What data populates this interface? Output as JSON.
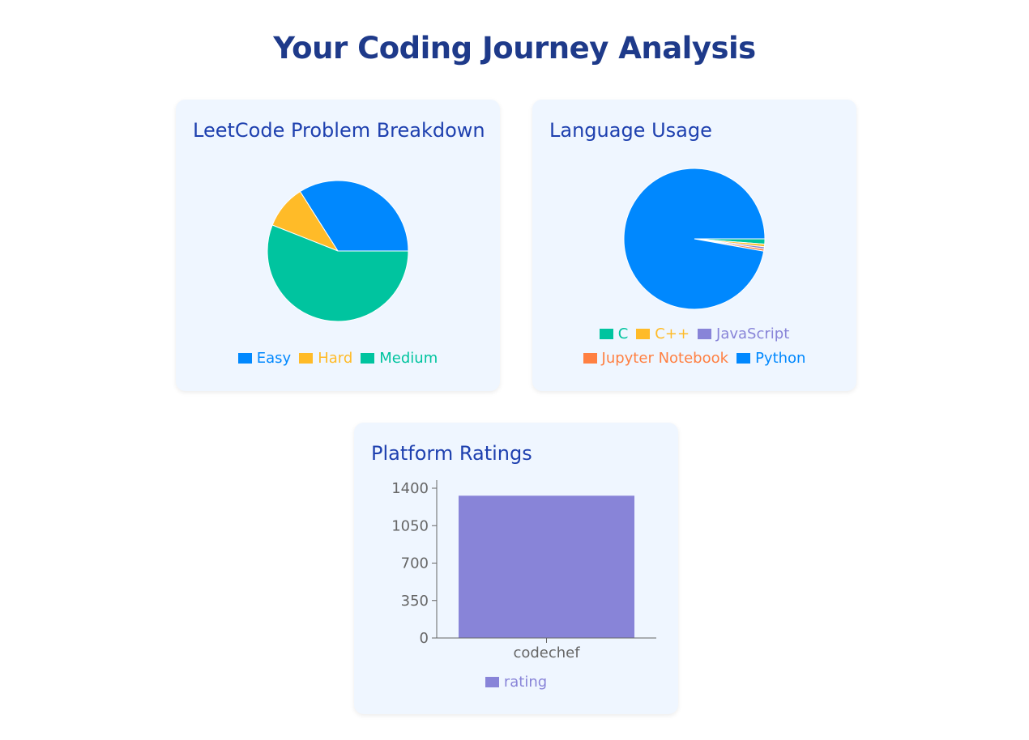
{
  "page": {
    "title": "Your Coding Journey Analysis"
  },
  "leetcode_card": {
    "title": "LeetCode Problem Breakdown"
  },
  "language_card": {
    "title": "Language Usage"
  },
  "ratings_card": {
    "title": "Platform Ratings"
  },
  "chart_data": [
    {
      "type": "pie",
      "title": "LeetCode Problem Breakdown",
      "slices": [
        {
          "label": "Easy",
          "value": 34,
          "color": "#0088fe"
        },
        {
          "label": "Hard",
          "value": 10,
          "color": "#ffbb28"
        },
        {
          "label": "Medium",
          "value": 56,
          "color": "#00c49f"
        }
      ],
      "legend": [
        "Easy",
        "Hard",
        "Medium"
      ],
      "legend_position": "bottom"
    },
    {
      "type": "pie",
      "title": "Language Usage",
      "slices": [
        {
          "label": "C",
          "value": 1.2,
          "color": "#00c49f"
        },
        {
          "label": "C++",
          "value": 0.6,
          "color": "#ffbb28"
        },
        {
          "label": "JavaScript",
          "value": 0.5,
          "color": "#8884d8"
        },
        {
          "label": "Jupyter Notebook",
          "value": 0.5,
          "color": "#ff8042"
        },
        {
          "label": "Python",
          "value": 97.2,
          "color": "#0088fe"
        }
      ],
      "legend": [
        "C",
        "C++",
        "JavaScript",
        "Jupyter Notebook",
        "Python"
      ],
      "legend_position": "bottom"
    },
    {
      "type": "bar",
      "title": "Platform Ratings",
      "categories": [
        "codechef"
      ],
      "series": [
        {
          "name": "rating",
          "values": [
            1330
          ],
          "color": "#8884d8"
        }
      ],
      "yticks": [
        0,
        350,
        700,
        1050,
        1400
      ],
      "ylim": [
        0,
        1400
      ],
      "grid": false,
      "legend_position": "bottom"
    }
  ]
}
